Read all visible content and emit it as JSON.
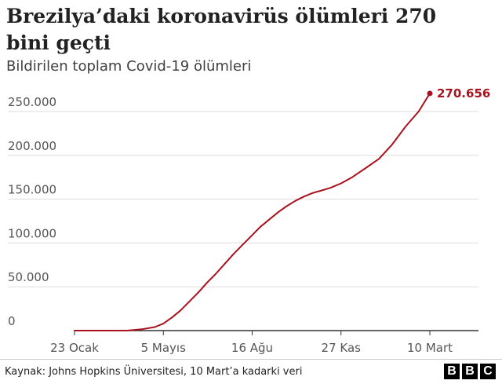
{
  "title": "Brezilya’daki koronavirüs ölümleri 270 bini geçti",
  "subtitle": "Bildirilen toplam Covid-19 ölümleri",
  "source": "Kaynak: Johns Hopkins Üniversitesi, 10 Mart’a kadarki veri",
  "logo": [
    "B",
    "B",
    "C"
  ],
  "colors": {
    "line": "#a8121e",
    "grid": "#dddddd",
    "axis": "#333333",
    "label": "#555555"
  },
  "chart_data": {
    "type": "line",
    "title": "Brezilya’daki koronavirüs ölümleri 270 bini geçti",
    "subtitle": "Bildirilen toplam Covid-19 ölümleri",
    "xlabel": "",
    "ylabel": "",
    "ylim": [
      0,
      250000
    ],
    "y_ticks": [
      0,
      50000,
      100000,
      150000,
      200000,
      250000
    ],
    "y_tick_labels": [
      "0",
      "50.000",
      "100.000",
      "150.000",
      "200.000",
      "250.000"
    ],
    "x_ticks": [
      "2020-01-23",
      "2020-05-05",
      "2020-08-16",
      "2020-11-27",
      "2021-03-10"
    ],
    "x_tick_labels": [
      "23 Ocak",
      "5 Mayıs",
      "16 Ağu",
      "27 Kas",
      "10 Mart"
    ],
    "grid": true,
    "series": [
      {
        "color": "#a8121e",
        "x": [
          "2020-01-23",
          "2020-03-10",
          "2020-03-25",
          "2020-04-10",
          "2020-04-25",
          "2020-05-05",
          "2020-05-15",
          "2020-05-25",
          "2020-06-05",
          "2020-06-15",
          "2020-06-25",
          "2020-07-05",
          "2020-07-15",
          "2020-07-25",
          "2020-08-05",
          "2020-08-16",
          "2020-08-25",
          "2020-09-05",
          "2020-09-15",
          "2020-09-25",
          "2020-10-05",
          "2020-10-15",
          "2020-10-25",
          "2020-11-05",
          "2020-11-15",
          "2020-11-27",
          "2020-12-10",
          "2020-12-25",
          "2021-01-10",
          "2021-01-25",
          "2021-02-10",
          "2021-02-25",
          "2021-03-10"
        ],
        "y": [
          0,
          0,
          100,
          1500,
          4000,
          8000,
          15000,
          23000,
          34000,
          44000,
          55000,
          65000,
          76000,
          87000,
          98000,
          109000,
          118000,
          127000,
          135000,
          142000,
          148000,
          153000,
          157000,
          160000,
          163000,
          168000,
          175000,
          185000,
          196000,
          212000,
          233000,
          250000,
          270656
        ]
      }
    ],
    "annotations": [
      {
        "text": "270.656",
        "x": "2021-03-10",
        "y": 270656
      }
    ]
  }
}
